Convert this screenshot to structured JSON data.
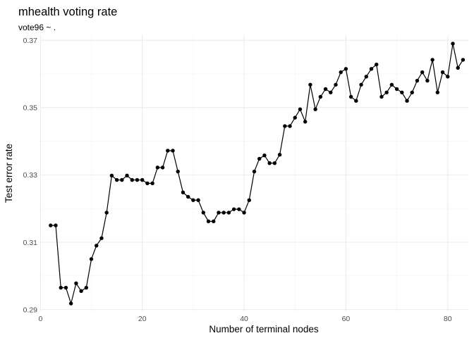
{
  "chart_data": {
    "type": "line",
    "title": "mhealth voting rate",
    "subtitle": "vote96 ~ .",
    "xlabel": "Number of terminal nodes",
    "ylabel": "Test error rate",
    "xlim": [
      -0.05,
      84.05
    ],
    "ylim": [
      0.2895,
      0.3715
    ],
    "x_ticks": [
      0,
      20,
      40,
      60,
      80
    ],
    "y_ticks": [
      0.29,
      0.31,
      0.33,
      0.35,
      0.37
    ],
    "x_tick_labels": [
      "0",
      "20",
      "40",
      "60",
      "80"
    ],
    "y_tick_labels": [
      "0.29",
      "0.31",
      "0.33",
      "0.35",
      "0.37"
    ],
    "grid": true,
    "series": [
      {
        "x": [
          2,
          3,
          4,
          5,
          6,
          7,
          8,
          9,
          10,
          11,
          12,
          13,
          14,
          15,
          16,
          17,
          18,
          19,
          20,
          21,
          22,
          23,
          24,
          25,
          26,
          27,
          28,
          29,
          30,
          31,
          32,
          33,
          34,
          35,
          36,
          37,
          38,
          39,
          40,
          41,
          42,
          43,
          44,
          45,
          46,
          47,
          48,
          49,
          50,
          51,
          52,
          53,
          54,
          55,
          56,
          57,
          58,
          59,
          60,
          61,
          62,
          63,
          64,
          65,
          66,
          67,
          68,
          69,
          70,
          71,
          72,
          73,
          74,
          75,
          76,
          77,
          78,
          79,
          80,
          81,
          82,
          83
        ],
        "y": [
          0.315,
          0.315,
          0.2965,
          0.2965,
          0.2918,
          0.2978,
          0.2955,
          0.2965,
          0.305,
          0.309,
          0.3112,
          0.3188,
          0.3298,
          0.3285,
          0.3285,
          0.3298,
          0.3285,
          0.3285,
          0.3285,
          0.3275,
          0.3275,
          0.3322,
          0.3322,
          0.3372,
          0.3372,
          0.331,
          0.3248,
          0.3235,
          0.3225,
          0.3225,
          0.3188,
          0.3162,
          0.3162,
          0.3188,
          0.3188,
          0.3188,
          0.3198,
          0.3198,
          0.3188,
          0.3225,
          0.331,
          0.3348,
          0.3358,
          0.3335,
          0.3335,
          0.336,
          0.3445,
          0.3445,
          0.347,
          0.3495,
          0.3458,
          0.3568,
          0.3495,
          0.3532,
          0.3555,
          0.3545,
          0.3568,
          0.3605,
          0.3615,
          0.3532,
          0.352,
          0.3568,
          0.3592,
          0.3615,
          0.3628,
          0.3532,
          0.3545,
          0.3568,
          0.3555,
          0.3545,
          0.352,
          0.3545,
          0.358,
          0.3605,
          0.358,
          0.3642,
          0.3545,
          0.3605,
          0.3592,
          0.369,
          0.3618,
          0.3642
        ]
      }
    ]
  }
}
